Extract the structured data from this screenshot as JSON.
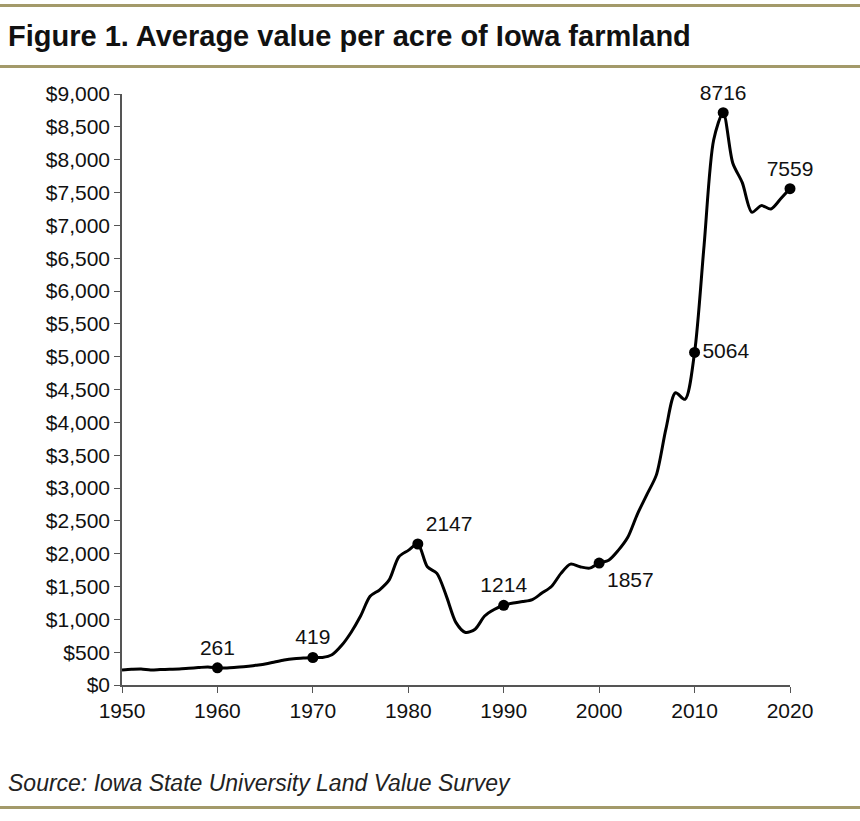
{
  "chart_data": {
    "type": "line",
    "title": "Figure 1. Average value per acre of Iowa farmland",
    "source": "Source: Iowa State University Land Value Survey",
    "x": [
      1950,
      1951,
      1952,
      1953,
      1954,
      1955,
      1956,
      1957,
      1958,
      1959,
      1960,
      1961,
      1962,
      1963,
      1964,
      1965,
      1966,
      1967,
      1968,
      1969,
      1970,
      1971,
      1972,
      1973,
      1974,
      1975,
      1976,
      1977,
      1978,
      1979,
      1980,
      1981,
      1982,
      1983,
      1984,
      1985,
      1986,
      1987,
      1988,
      1989,
      1990,
      1991,
      1992,
      1993,
      1994,
      1995,
      1996,
      1997,
      1998,
      1999,
      2000,
      2001,
      2002,
      2003,
      2004,
      2005,
      2006,
      2007,
      2008,
      2009,
      2010,
      2011,
      2012,
      2013,
      2014,
      2015,
      2016,
      2017,
      2018,
      2019,
      2020
    ],
    "values": [
      230,
      240,
      245,
      230,
      235,
      240,
      245,
      255,
      265,
      275,
      261,
      260,
      270,
      280,
      300,
      320,
      350,
      380,
      400,
      410,
      419,
      420,
      460,
      600,
      800,
      1050,
      1350,
      1450,
      1600,
      1950,
      2050,
      2147,
      1800,
      1700,
      1350,
      950,
      800,
      850,
      1050,
      1150,
      1214,
      1250,
      1270,
      1300,
      1400,
      1500,
      1700,
      1840,
      1800,
      1780,
      1857,
      1900,
      2050,
      2250,
      2600,
      2900,
      3200,
      3900,
      4450,
      4350,
      5064,
      6700,
      8300,
      8716,
      7950,
      7650,
      7200,
      7300,
      7250,
      7400,
      7559
    ],
    "color": "#000000",
    "marked_points": {
      "x": [
        1960,
        1970,
        1981,
        1990,
        2000,
        2010,
        2013,
        2020
      ],
      "values": [
        261,
        419,
        2147,
        1214,
        1857,
        5064,
        8716,
        7559
      ]
    },
    "data_labels": true,
    "marker": "circle",
    "line_style": "solid",
    "grid": false,
    "xlim": [
      1950,
      2020
    ],
    "xticks": [
      1950,
      1960,
      1970,
      1980,
      1990,
      2000,
      2010,
      2020
    ],
    "ylim": [
      0,
      9000
    ],
    "yticks": [
      {
        "value": 0,
        "label": "$0"
      },
      {
        "value": 500,
        "label": "$500"
      },
      {
        "value": 1000,
        "label": "$1,000"
      },
      {
        "value": 1500,
        "label": "$1,500"
      },
      {
        "value": 2000,
        "label": "$2,000"
      },
      {
        "value": 2500,
        "label": "$2,500"
      },
      {
        "value": 3000,
        "label": "$3,000"
      },
      {
        "value": 3500,
        "label": "$3,500"
      },
      {
        "value": 4000,
        "label": "$4,000"
      },
      {
        "value": 4500,
        "label": "$4,500"
      },
      {
        "value": 5000,
        "label": "$5,000"
      },
      {
        "value": 5500,
        "label": "$5,500"
      },
      {
        "value": 6000,
        "label": "$6,000"
      },
      {
        "value": 6500,
        "label": "$6,500"
      },
      {
        "value": 7000,
        "label": "$7,000"
      },
      {
        "value": 7500,
        "label": "$7,500"
      },
      {
        "value": 8000,
        "label": "$8,000"
      },
      {
        "value": 8500,
        "label": "$8,500"
      },
      {
        "value": 9000,
        "label": "$9,000"
      }
    ]
  }
}
